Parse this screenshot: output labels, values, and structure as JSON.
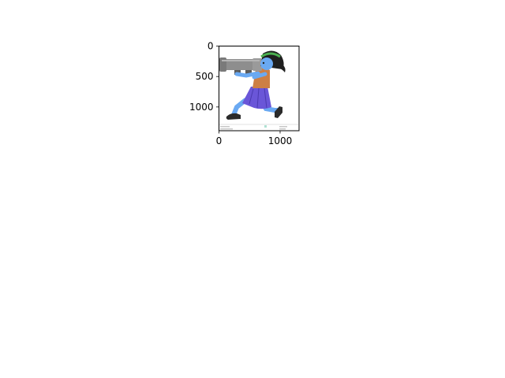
{
  "chart_data": {
    "type": "image",
    "xlim": [
      0,
      1310
    ],
    "ylim": [
      1390,
      0
    ],
    "x_ticks": [
      {
        "value": 0,
        "label": "0"
      },
      {
        "value": 1000,
        "label": "1000"
      }
    ],
    "y_ticks": [
      {
        "value": 0,
        "label": "0"
      },
      {
        "value": 500,
        "label": "500"
      },
      {
        "value": 1000,
        "label": "1000"
      }
    ],
    "grid": false,
    "colors": {
      "frame": "#000000",
      "bazooka": "#8e8e8e",
      "bazooka_dark": "#5b5b5b",
      "skin": "#6aa9f2",
      "hair": "#1f1f1f",
      "headband": "#4caf50",
      "shirt": "#cd7f45",
      "skirt": "#6a56d8",
      "shoe": "#2a2a2a"
    }
  }
}
